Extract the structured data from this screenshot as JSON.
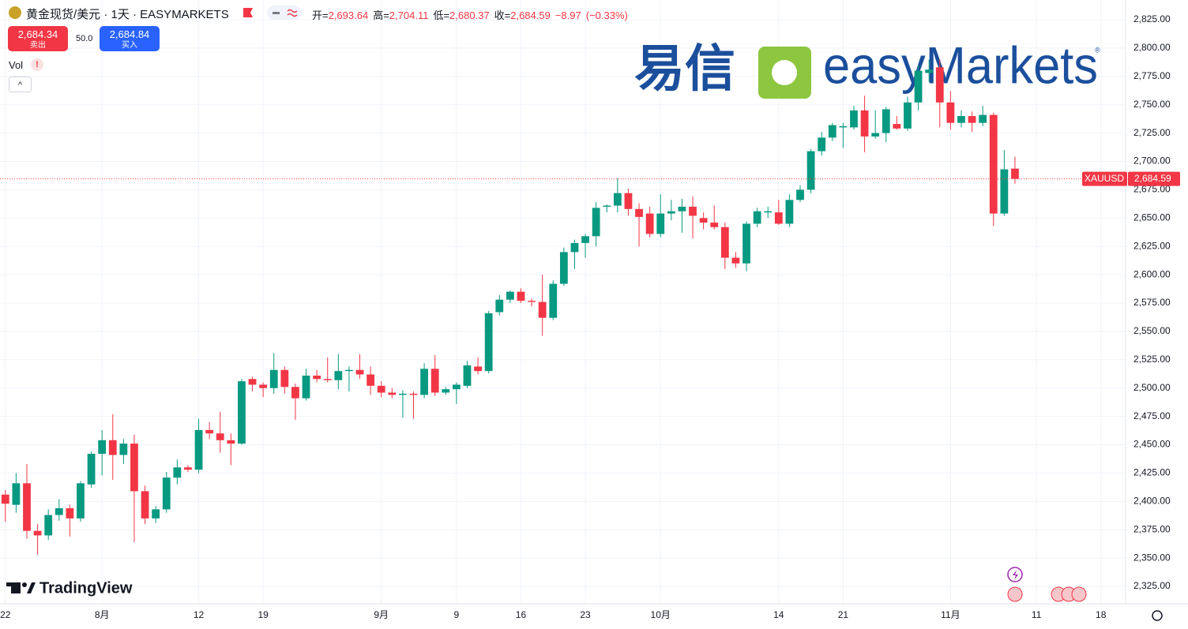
{
  "header": {
    "title": "黄金现货/美元 · 1天 · EASYMARKETS",
    "ohlc": [
      {
        "label": "开=",
        "value": "2,693.64"
      },
      {
        "label": "高=",
        "value": "2,704.11"
      },
      {
        "label": "低=",
        "value": "2,680.37"
      },
      {
        "label": "收=",
        "value": "2,684.59"
      }
    ],
    "change": "−8.97",
    "change_pct": "(−0.33%)"
  },
  "trade": {
    "sell_price": "2,684.34",
    "sell_label": "卖出",
    "spread": "50.0",
    "buy_price": "2,684.84",
    "buy_label": "买入"
  },
  "indicator": {
    "label": "Vol",
    "warning": "!"
  },
  "watermark": {
    "cn": "易信",
    "en": "easyMarkets",
    "mark": "®"
  },
  "branding": "TradingView",
  "chart_data": {
    "type": "candlestick",
    "up_color": "#089981",
    "down_color": "#f23645",
    "grid": true,
    "open": [
      2406,
      2397,
      2416,
      2374,
      2370,
      2388,
      2394,
      2385,
      2415,
      2442,
      2454,
      2441,
      2451,
      2409,
      2385,
      2393,
      2421,
      2430,
      2428,
      2463,
      2460,
      2454,
      2451,
      2508,
      2503,
      2500,
      2516,
      2501,
      2491,
      2511,
      2508,
      2507,
      2515,
      2516,
      2512,
      2502,
      2496,
      2494,
      2495,
      2494,
      2517,
      2496,
      2499,
      2502,
      2519,
      2515,
      2567,
      2578,
      2585,
      2577,
      2576,
      2562,
      2592,
      2620,
      2628,
      2634,
      2660,
      2661,
      2672,
      2658,
      2654,
      2636,
      2654,
      2656,
      2660,
      2650,
      2646,
      2642,
      2615,
      2610,
      2645,
      2655,
      2655,
      2645,
      2666,
      2675,
      2709,
      2721,
      2730,
      2730,
      2745,
      2722,
      2725,
      2733,
      2729,
      2752,
      2778,
      2783,
      2752,
      2734,
      2740,
      2734,
      2741,
      2654,
      2693.64
    ],
    "high": [
      2410,
      2425,
      2433,
      2380,
      2393,
      2402,
      2397,
      2418,
      2444,
      2463,
      2477,
      2455,
      2459,
      2414,
      2396,
      2426,
      2437,
      2432,
      2473,
      2470,
      2479,
      2460,
      2508,
      2510,
      2505,
      2531,
      2519,
      2504,
      2517,
      2516,
      2527,
      2530,
      2519,
      2530,
      2519,
      2506,
      2500,
      2498,
      2497,
      2522,
      2529,
      2501,
      2505,
      2524,
      2527,
      2568,
      2582,
      2586,
      2588,
      2579,
      2600,
      2595,
      2624,
      2631,
      2636,
      2664,
      2662,
      2685,
      2676,
      2663,
      2660,
      2671,
      2666,
      2667,
      2669,
      2655,
      2661,
      2646,
      2620,
      2647,
      2659,
      2660,
      2666,
      2671,
      2679,
      2711,
      2726,
      2734,
      2734,
      2749,
      2758,
      2745,
      2748,
      2740,
      2757,
      2785,
      2790,
      2790,
      2762,
      2745,
      2744,
      2749,
      2743,
      2710,
      2704.11
    ],
    "low": [
      2382,
      2390,
      2367,
      2353,
      2366,
      2383,
      2369,
      2382,
      2412,
      2423,
      2419,
      2433,
      2364,
      2380,
      2381,
      2390,
      2415,
      2426,
      2425,
      2455,
      2443,
      2432,
      2450,
      2497,
      2492,
      2495,
      2495,
      2472,
      2489,
      2505,
      2505,
      2499,
      2497,
      2508,
      2494,
      2492,
      2491,
      2474,
      2473,
      2491,
      2493,
      2494,
      2486,
      2500,
      2512,
      2513,
      2564,
      2575,
      2575,
      2572,
      2546,
      2560,
      2590,
      2605,
      2615,
      2625,
      2655,
      2655,
      2652,
      2625,
      2633,
      2633,
      2648,
      2637,
      2632,
      2640,
      2640,
      2605,
      2606,
      2603,
      2642,
      2650,
      2644,
      2642,
      2664,
      2672,
      2705,
      2718,
      2712,
      2728,
      2708,
      2720,
      2717,
      2728,
      2727,
      2745,
      2770,
      2730,
      2728,
      2730,
      2726,
      2731,
      2643,
      2652,
      2680.37
    ],
    "close": [
      2398,
      2416,
      2374,
      2370,
      2388,
      2394,
      2385,
      2416,
      2442,
      2454,
      2441,
      2451,
      2409,
      2385,
      2393,
      2421,
      2430,
      2428,
      2463,
      2460,
      2454,
      2451,
      2506,
      2503,
      2500,
      2516,
      2501,
      2491,
      2511,
      2508,
      2507,
      2515,
      2516,
      2512,
      2502,
      2496,
      2494,
      2495,
      2494,
      2517,
      2496,
      2499,
      2503,
      2520,
      2515,
      2566,
      2578,
      2585,
      2577,
      2576,
      2562,
      2592,
      2620,
      2628,
      2634,
      2659,
      2661,
      2672,
      2658,
      2651,
      2636,
      2654,
      2656,
      2660,
      2652,
      2646,
      2642,
      2615,
      2610,
      2645,
      2656,
      2656,
      2645,
      2666,
      2675,
      2709,
      2721,
      2732,
      2731,
      2745,
      2722,
      2725,
      2746,
      2729,
      2752,
      2780,
      2781,
      2752,
      2734,
      2740,
      2734,
      2741,
      2654,
      2693,
      2684.59
    ],
    "xlim": [
      -0.5,
      104.3
    ],
    "xticks": [
      {
        "value": 0,
        "label": "22"
      },
      {
        "value": 9,
        "label": "8月"
      },
      {
        "value": 18,
        "label": "12"
      },
      {
        "value": 24,
        "label": "19"
      },
      {
        "value": 35,
        "label": "9月"
      },
      {
        "value": 42,
        "label": "9"
      },
      {
        "value": 48,
        "label": "16"
      },
      {
        "value": 54,
        "label": "23"
      },
      {
        "value": 61,
        "label": "10月"
      },
      {
        "value": 72,
        "label": "14"
      },
      {
        "value": 78,
        "label": "21"
      },
      {
        "value": 88,
        "label": "11月"
      },
      {
        "value": 96,
        "label": "11"
      },
      {
        "value": 102,
        "label": "18"
      }
    ],
    "ylim": [
      2309.7,
      2842.4
    ],
    "yticks": [
      {
        "value": 2325,
        "label": "2,325.00"
      },
      {
        "value": 2350,
        "label": "2,350.00"
      },
      {
        "value": 2375,
        "label": "2,375.00"
      },
      {
        "value": 2400,
        "label": "2,400.00"
      },
      {
        "value": 2425,
        "label": "2,425.00"
      },
      {
        "value": 2450,
        "label": "2,450.00"
      },
      {
        "value": 2475,
        "label": "2,475.00"
      },
      {
        "value": 2500,
        "label": "2,500.00"
      },
      {
        "value": 2525,
        "label": "2,525.00"
      },
      {
        "value": 2550,
        "label": "2,550.00"
      },
      {
        "value": 2575,
        "label": "2,575.00"
      },
      {
        "value": 2600,
        "label": "2,600.00"
      },
      {
        "value": 2625,
        "label": "2,625.00"
      },
      {
        "value": 2650,
        "label": "2,650.00"
      },
      {
        "value": 2675,
        "label": "2,675.00"
      },
      {
        "value": 2700,
        "label": "2,700.00"
      },
      {
        "value": 2725,
        "label": "2,725.00"
      },
      {
        "value": 2750,
        "label": "2,750.00"
      },
      {
        "value": 2775,
        "label": "2,775.00"
      },
      {
        "value": 2800,
        "label": "2,800.00"
      },
      {
        "value": 2825,
        "label": "2,825.00"
      }
    ],
    "last_price": {
      "symbol": "XAUUSD",
      "value": 2684.59,
      "label": "2,684.59"
    }
  }
}
